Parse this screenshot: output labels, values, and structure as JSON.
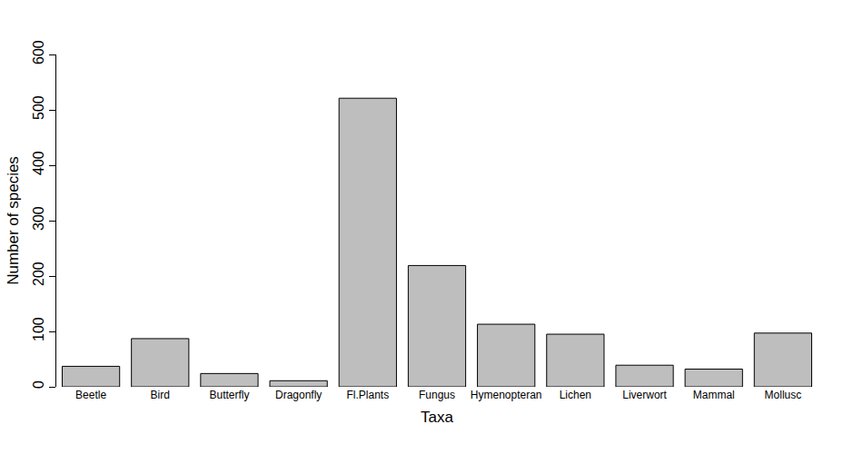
{
  "chart_data": {
    "type": "bar",
    "x_label": "Taxa",
    "y_label": "Number of species",
    "categories": [
      "Beetle",
      "Bird",
      "Butterfly",
      "Dragonfly",
      "Fl.Plants",
      "Fungus",
      "Hymenopteran",
      "Lichen",
      "Liverwort",
      "Mammal",
      "Mollusc"
    ],
    "values": [
      37,
      87,
      24,
      11,
      521,
      219,
      113,
      95,
      39,
      32,
      97
    ],
    "color": "#bebebe",
    "ylim": [
      0,
      600
    ],
    "yticks": [
      0,
      100,
      200,
      300,
      400,
      500,
      600
    ],
    "grid": false
  }
}
